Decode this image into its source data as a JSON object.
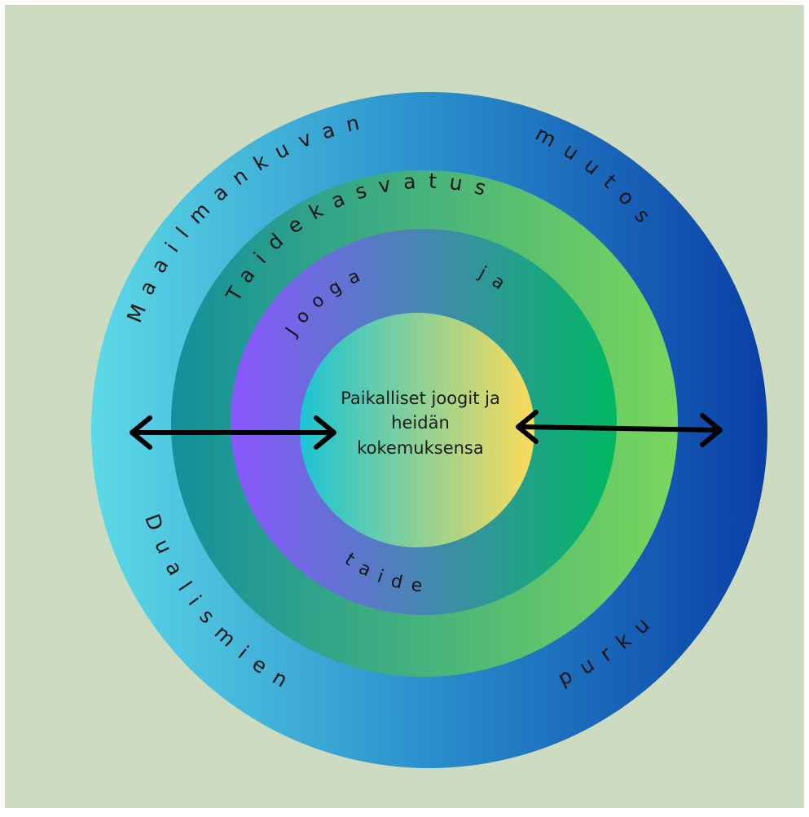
{
  "diagram": {
    "outer_ring": {
      "top_left": "Maailmankuvan",
      "top_right": "muutos",
      "bottom_left": "Dualismien",
      "bottom_right": "purku"
    },
    "middle_ring": {
      "top": "Taidekasvatus"
    },
    "inner_ring": {
      "top_left": "Jooga",
      "top_right": "ja",
      "bottom": "taide"
    },
    "core": {
      "lines": [
        "Paikalliset joogit ja",
        "heidän",
        "kokemuksensa"
      ]
    },
    "colors": {
      "background": "#cddcc0",
      "outer_left": "#5cd9e6",
      "outer_mid": "#2a8fcc",
      "outer_right": "#0a3fa6",
      "middle_left": "#138f9c",
      "middle_right": "#7ad65c",
      "inner_left": "#8a56ff",
      "inner_right": "#00b862",
      "core_left": "#1cc4d4",
      "core_right": "#fbdc5a",
      "arrow": "#000000"
    }
  }
}
